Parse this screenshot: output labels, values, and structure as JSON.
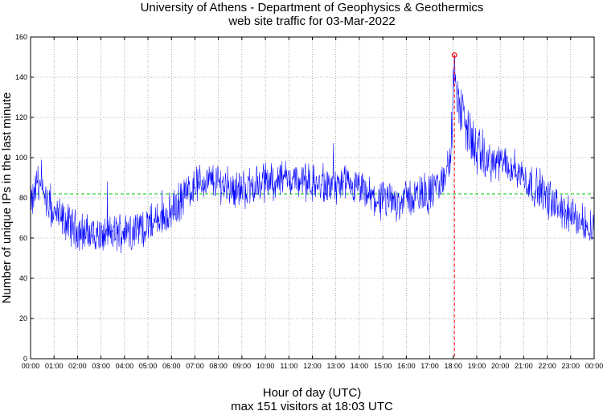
{
  "chart_data": {
    "type": "line",
    "title": "University of Athens - Department of Geophysics & Geothermics",
    "subtitle": "web site traffic for 03-Mar-2022",
    "xlabel": "Hour of day (UTC)",
    "ylabel": "Number of unique IPs in the last minute",
    "caption": "max 151 visitors at 18:03 UTC",
    "xlim": [
      0,
      24
    ],
    "ylim": [
      0,
      160
    ],
    "grid": true,
    "x_ticks": [
      "00:00",
      "01:00",
      "02:00",
      "03:00",
      "04:00",
      "05:00",
      "06:00",
      "07:00",
      "08:00",
      "09:00",
      "10:00",
      "11:00",
      "12:00",
      "13:00",
      "14:00",
      "15:00",
      "16:00",
      "17:00",
      "18:00",
      "19:00",
      "20:00",
      "21:00",
      "22:00",
      "23:00",
      "00:00"
    ],
    "y_ticks": [
      0,
      20,
      40,
      60,
      80,
      100,
      120,
      140,
      160
    ],
    "mean_line": 82,
    "max": {
      "value": 151,
      "time": "18:03",
      "hour": 18.05
    },
    "series_color": "#0000ff",
    "mean_color": "#00cc00",
    "max_color": "#ff0000",
    "hourly_profile": {
      "x": [
        0,
        0.15,
        0.3,
        0.6,
        1,
        1.5,
        2,
        2.5,
        3,
        3.5,
        4,
        4.5,
        5,
        5.5,
        6,
        6.5,
        7,
        7.5,
        8,
        8.5,
        9,
        9.5,
        10,
        10.5,
        11,
        11.5,
        12,
        12.5,
        13,
        13.5,
        14,
        14.5,
        15,
        15.5,
        16,
        16.5,
        17,
        17.5,
        17.9,
        18.05,
        18.2,
        18.5,
        19,
        19.5,
        20,
        20.5,
        21,
        21.5,
        22,
        22.5,
        23,
        23.5,
        24
      ],
      "y": [
        76,
        80,
        90,
        78,
        72,
        68,
        64,
        62,
        61,
        62,
        64,
        65,
        66,
        69,
        73,
        80,
        87,
        88,
        88,
        85,
        84,
        86,
        88,
        89,
        90,
        88,
        87,
        85,
        86,
        85,
        84,
        80,
        78,
        78,
        80,
        81,
        82,
        87,
        100,
        151,
        128,
        118,
        102,
        98,
        97,
        96,
        90,
        85,
        80,
        75,
        71,
        68,
        66
      ]
    }
  }
}
